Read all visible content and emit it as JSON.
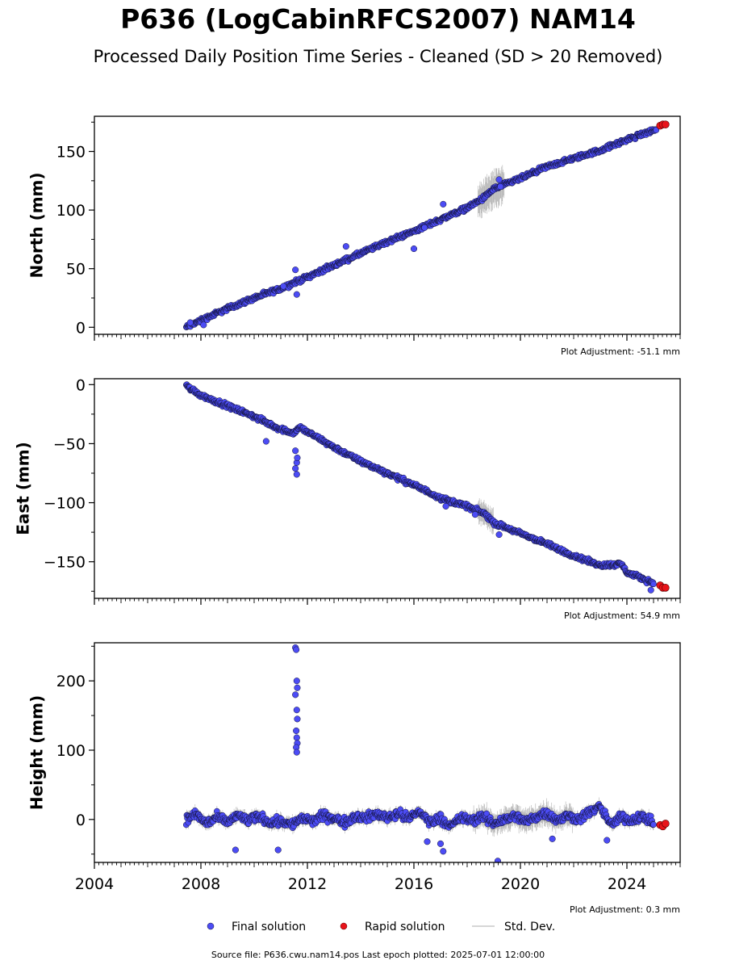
{
  "title": "P636 (LogCabinRFCS2007) NAM14",
  "subtitle": "Processed Daily Position Time Series - Cleaned (SD > 20 Removed)",
  "source_text": "Source file: P636.cwu.nam14.pos  Last epoch plotted: 2025-07-01 12:00:00",
  "legend": {
    "final_label": "Final solution",
    "rapid_label": "Rapid solution",
    "std_label": "Std. Dev."
  },
  "colors": {
    "final": "#4c4cf5",
    "final_edge": "#111133",
    "rapid": "#e8141a",
    "std": "#bdbdbd"
  },
  "chart_data": [
    {
      "type": "scatter",
      "ylabel": "North (mm)",
      "adjustment": "Plot Adjustment: -51.1 mm",
      "xlim": [
        2004.0,
        2026.0
      ],
      "ylim": [
        -6,
        180
      ],
      "yticks": [
        0,
        50,
        100,
        150
      ],
      "yticklabels": [
        "0",
        "50",
        "100",
        "150"
      ],
      "series": [
        {
          "kind": "final",
          "x": [
            2007.45,
            2008.0,
            2009.0,
            2010.0,
            2011.0,
            2011.6,
            2012.0,
            2013.0,
            2014.0,
            2015.0,
            2016.0,
            2017.0,
            2018.0,
            2018.6,
            2019.0,
            2020.0,
            2021.0,
            2022.0,
            2023.0,
            2024.0,
            2025.1
          ],
          "y": [
            0,
            6,
            16,
            25,
            33,
            39,
            43,
            53,
            63,
            73,
            82,
            92,
            102,
            110,
            118,
            127,
            137,
            144,
            151,
            160,
            169
          ]
        },
        {
          "kind": "rapid",
          "x": [
            2025.25,
            2025.35,
            2025.45
          ],
          "y": [
            172,
            173,
            173
          ]
        }
      ],
      "outliers": {
        "x": [
          2007.6,
          2008.1,
          2011.1,
          2011.55,
          2011.6,
          2013.45,
          2016.0,
          2016.4,
          2017.1,
          2019.2,
          2019.25
        ],
        "y": [
          4,
          2,
          35,
          49,
          28,
          69,
          67,
          85,
          105,
          126,
          120
        ]
      }
    },
    {
      "type": "scatter",
      "ylabel": "East (mm)",
      "adjustment": "Plot Adjustment: 54.9 mm",
      "xlim": [
        2004.0,
        2026.0
      ],
      "ylim": [
        -181,
        5
      ],
      "yticks": [
        0,
        -50,
        -100,
        -150
      ],
      "yticklabels": [
        "0",
        "−50",
        "−100",
        "−150"
      ],
      "series": [
        {
          "kind": "final",
          "x": [
            2007.45,
            2008.0,
            2009.0,
            2010.0,
            2010.9,
            2011.5,
            2011.7,
            2012.0,
            2013.0,
            2014.0,
            2015.0,
            2016.0,
            2017.0,
            2018.0,
            2018.7,
            2019.0,
            2020.0,
            2021.0,
            2022.0,
            2023.0,
            2023.8,
            2024.0,
            2025.0
          ],
          "y": [
            -1,
            -9,
            -18,
            -27,
            -37,
            -41,
            -36,
            -40,
            -53,
            -65,
            -75,
            -85,
            -96,
            -103,
            -110,
            -117,
            -126,
            -135,
            -145,
            -153,
            -152,
            -159,
            -168
          ]
        },
        {
          "kind": "rapid",
          "x": [
            2025.25,
            2025.35,
            2025.45
          ],
          "y": [
            -170,
            -172,
            -172
          ]
        }
      ],
      "outliers": {
        "x": [
          2010.45,
          2011.55,
          2011.6,
          2011.55,
          2011.6,
          2011.62,
          2017.2,
          2018.3,
          2019.2,
          2024.9
        ],
        "y": [
          -48,
          -56,
          -66,
          -71,
          -76,
          -62,
          -103,
          -110,
          -127,
          -174
        ]
      }
    },
    {
      "type": "scatter",
      "ylabel": "Height (mm)",
      "adjustment": "Plot Adjustment: 0.3 mm",
      "xlim": [
        2004.0,
        2026.0
      ],
      "ylim": [
        -62,
        255
      ],
      "yticks": [
        0,
        100,
        200
      ],
      "yticklabels": [
        "0",
        "100",
        "200"
      ],
      "xticks": [
        2004,
        2008,
        2012,
        2016,
        2020,
        2024
      ],
      "xticklabels": [
        "2004",
        "2008",
        "2012",
        "2016",
        "2020",
        "2024"
      ],
      "series": [
        {
          "kind": "final",
          "x": [
            2007.45,
            2007.8,
            2008.2,
            2008.6,
            2009.0,
            2009.4,
            2009.8,
            2010.2,
            2010.6,
            2011.0,
            2011.4,
            2011.8,
            2012.2,
            2012.6,
            2013.0,
            2013.4,
            2013.8,
            2014.2,
            2014.6,
            2015.0,
            2015.4,
            2015.8,
            2016.2,
            2016.6,
            2017.0,
            2017.4,
            2017.8,
            2018.2,
            2018.6,
            2019.0,
            2019.4,
            2019.8,
            2020.2,
            2020.6,
            2021.0,
            2021.4,
            2021.8,
            2022.2,
            2022.6,
            2023.0,
            2023.4,
            2023.8,
            2024.2,
            2024.6,
            2025.0
          ],
          "y": [
            0,
            8,
            -6,
            3,
            -4,
            6,
            -2,
            5,
            -5,
            -2,
            -8,
            2,
            -3,
            6,
            1,
            -4,
            5,
            2,
            8,
            3,
            9,
            1,
            12,
            -4,
            2,
            -10,
            3,
            -2,
            4,
            -6,
            0,
            5,
            -3,
            4,
            10,
            -2,
            6,
            0,
            11,
            18,
            -8,
            4,
            -2,
            5,
            -6
          ]
        },
        {
          "kind": "rapid",
          "x": [
            2025.25,
            2025.35,
            2025.45
          ],
          "y": [
            -8,
            -10,
            -6
          ]
        }
      ],
      "outliers": {
        "x": [
          2011.55,
          2011.58,
          2011.6,
          2011.62,
          2011.55,
          2011.6,
          2011.62,
          2011.58,
          2011.6,
          2011.62,
          2011.58,
          2011.6,
          2009.3,
          2010.9,
          2016.5,
          2017.0,
          2017.1,
          2019.15,
          2021.2,
          2023.25
        ],
        "y": [
          248,
          245,
          200,
          190,
          180,
          158,
          145,
          128,
          118,
          110,
          104,
          97,
          -44,
          -44,
          -32,
          -35,
          -46,
          -60,
          -28,
          -30
        ]
      }
    }
  ]
}
